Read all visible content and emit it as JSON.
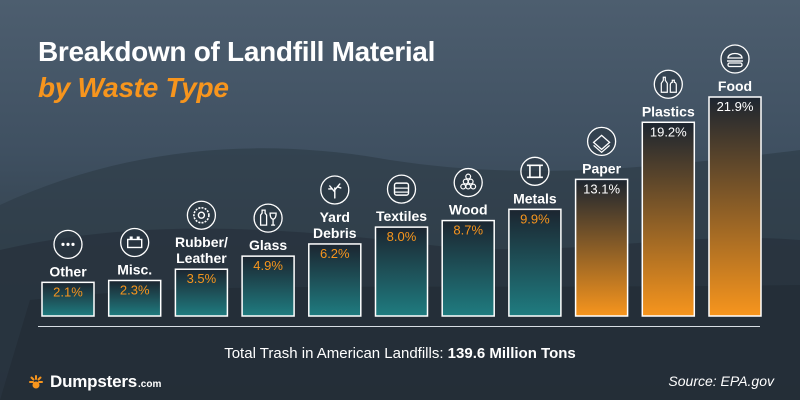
{
  "header": {
    "title": "Breakdown of Landfill Material",
    "subtitle": "by Waste Type"
  },
  "footer": {
    "total_label": "Total Trash in American Landfills:",
    "total_value": "139.6 Million Tons",
    "brand_name": "Dumpsters",
    "brand_suffix": ".com",
    "source": "Source: EPA.gov"
  },
  "colors": {
    "accent": "#f7951d",
    "bar_teal": "#1f7c80",
    "bar_orange": "#f7951d",
    "bar_dark": "#1c2530",
    "text": "#ffffff"
  },
  "chart_data": {
    "type": "bar",
    "title": "Breakdown of Landfill Material",
    "subtitle": "by Waste Type",
    "xlabel": "",
    "ylabel": "",
    "unit": "%",
    "ylim": [
      0,
      21.9
    ],
    "grid": false,
    "legend": "none",
    "categories": [
      "Other",
      "Misc.",
      "Rubber/\nLeather",
      "Glass",
      "Yard\nDebris",
      "Textiles",
      "Wood",
      "Metals",
      "Paper",
      "Plastics",
      "Food"
    ],
    "values": [
      2.1,
      2.3,
      3.5,
      4.9,
      6.2,
      8.0,
      8.7,
      9.9,
      13.1,
      19.2,
      21.9
    ],
    "value_labels": [
      "2.1%",
      "2.3%",
      "3.5%",
      "4.9%",
      "6.2%",
      "8.0%",
      "8.7%",
      "9.9%",
      "13.1%",
      "19.2%",
      "21.9%"
    ],
    "bar_colors": [
      "teal",
      "teal",
      "teal",
      "teal",
      "teal",
      "teal",
      "teal",
      "teal",
      "orange",
      "orange",
      "orange"
    ],
    "icons": [
      "dots-icon",
      "lego-brick-icon",
      "tire-icon",
      "bottle-glass-icon",
      "tree-icon",
      "folded-cloth-icon",
      "log-pile-icon",
      "metal-beam-icon",
      "paper-stack-icon",
      "plastic-bottles-icon",
      "burger-food-icon"
    ]
  }
}
